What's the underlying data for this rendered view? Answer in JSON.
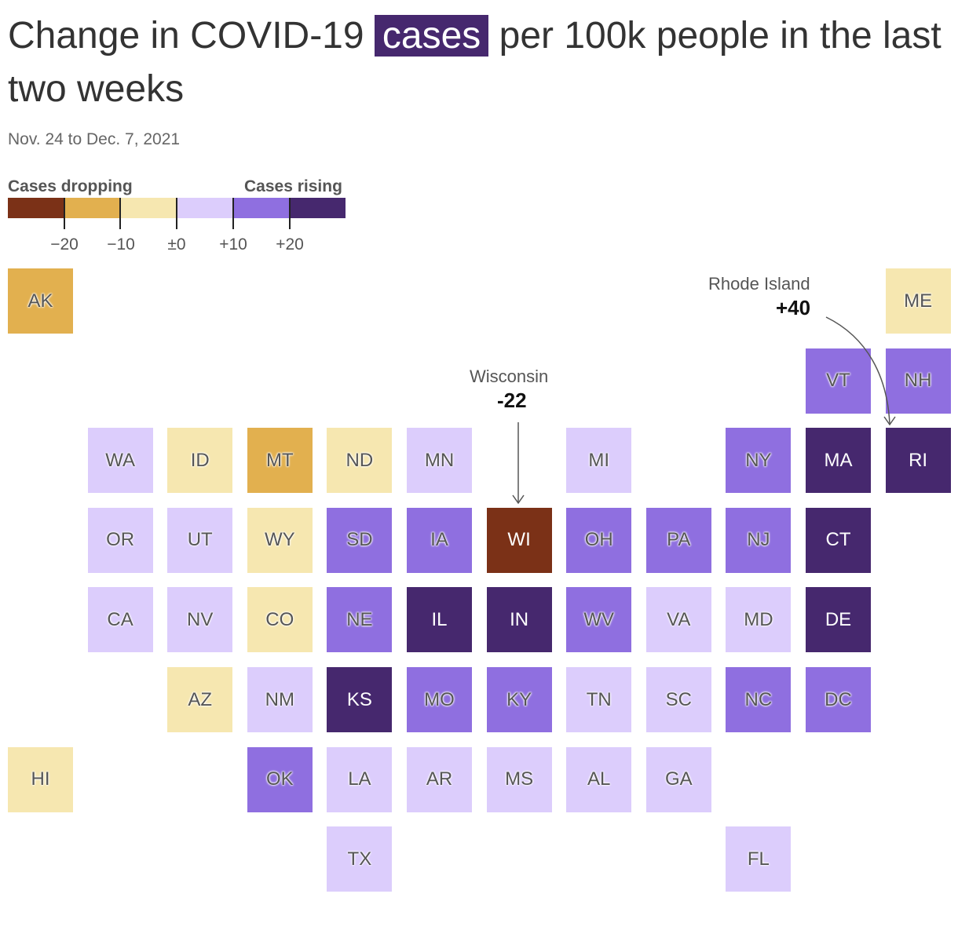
{
  "title": {
    "before": "Change in COVID-19 ",
    "highlight": "cases",
    "after": " per 100k people in the last two weeks"
  },
  "subtitle": "Nov. 24 to Dec. 7, 2021",
  "legend": {
    "left_label": "Cases dropping",
    "right_label": "Cases rising",
    "colors": [
      "#7b3117",
      "#e2b04f",
      "#f6e7b0",
      "#dccdfc",
      "#8f6fe0",
      "#46286e"
    ],
    "ticks": [
      "−20",
      "−10",
      "±0",
      "+10",
      "+20"
    ]
  },
  "annotations": {
    "wisconsin": {
      "name": "Wisconsin",
      "value": "-22"
    },
    "rhode_island": {
      "name": "Rhode Island",
      "value": "+40"
    }
  },
  "states": [
    {
      "abbr": "AK",
      "bucket": 1
    },
    {
      "abbr": "ME",
      "bucket": 2
    },
    {
      "abbr": "VT",
      "bucket": 4
    },
    {
      "abbr": "NH",
      "bucket": 4
    },
    {
      "abbr": "WA",
      "bucket": 3
    },
    {
      "abbr": "ID",
      "bucket": 2
    },
    {
      "abbr": "MT",
      "bucket": 1
    },
    {
      "abbr": "ND",
      "bucket": 2
    },
    {
      "abbr": "MN",
      "bucket": 3
    },
    {
      "abbr": "MI",
      "bucket": 3
    },
    {
      "abbr": "NY",
      "bucket": 4
    },
    {
      "abbr": "MA",
      "bucket": 5
    },
    {
      "abbr": "RI",
      "bucket": 5
    },
    {
      "abbr": "OR",
      "bucket": 3
    },
    {
      "abbr": "UT",
      "bucket": 3
    },
    {
      "abbr": "WY",
      "bucket": 2
    },
    {
      "abbr": "SD",
      "bucket": 4
    },
    {
      "abbr": "IA",
      "bucket": 4
    },
    {
      "abbr": "WI",
      "bucket": 0
    },
    {
      "abbr": "OH",
      "bucket": 4
    },
    {
      "abbr": "PA",
      "bucket": 4
    },
    {
      "abbr": "NJ",
      "bucket": 4
    },
    {
      "abbr": "CT",
      "bucket": 5
    },
    {
      "abbr": "CA",
      "bucket": 3
    },
    {
      "abbr": "NV",
      "bucket": 3
    },
    {
      "abbr": "CO",
      "bucket": 2
    },
    {
      "abbr": "NE",
      "bucket": 4
    },
    {
      "abbr": "IL",
      "bucket": 5
    },
    {
      "abbr": "IN",
      "bucket": 5
    },
    {
      "abbr": "WV",
      "bucket": 4
    },
    {
      "abbr": "VA",
      "bucket": 3
    },
    {
      "abbr": "MD",
      "bucket": 3
    },
    {
      "abbr": "DE",
      "bucket": 5
    },
    {
      "abbr": "AZ",
      "bucket": 2
    },
    {
      "abbr": "NM",
      "bucket": 3
    },
    {
      "abbr": "KS",
      "bucket": 5
    },
    {
      "abbr": "MO",
      "bucket": 4
    },
    {
      "abbr": "KY",
      "bucket": 4
    },
    {
      "abbr": "TN",
      "bucket": 3
    },
    {
      "abbr": "SC",
      "bucket": 3
    },
    {
      "abbr": "NC",
      "bucket": 4
    },
    {
      "abbr": "DC",
      "bucket": 4
    },
    {
      "abbr": "HI",
      "bucket": 2
    },
    {
      "abbr": "OK",
      "bucket": 4
    },
    {
      "abbr": "LA",
      "bucket": 3
    },
    {
      "abbr": "AR",
      "bucket": 3
    },
    {
      "abbr": "MS",
      "bucket": 3
    },
    {
      "abbr": "AL",
      "bucket": 3
    },
    {
      "abbr": "GA",
      "bucket": 3
    },
    {
      "abbr": "TX",
      "bucket": 3
    },
    {
      "abbr": "FL",
      "bucket": 3
    }
  ]
}
